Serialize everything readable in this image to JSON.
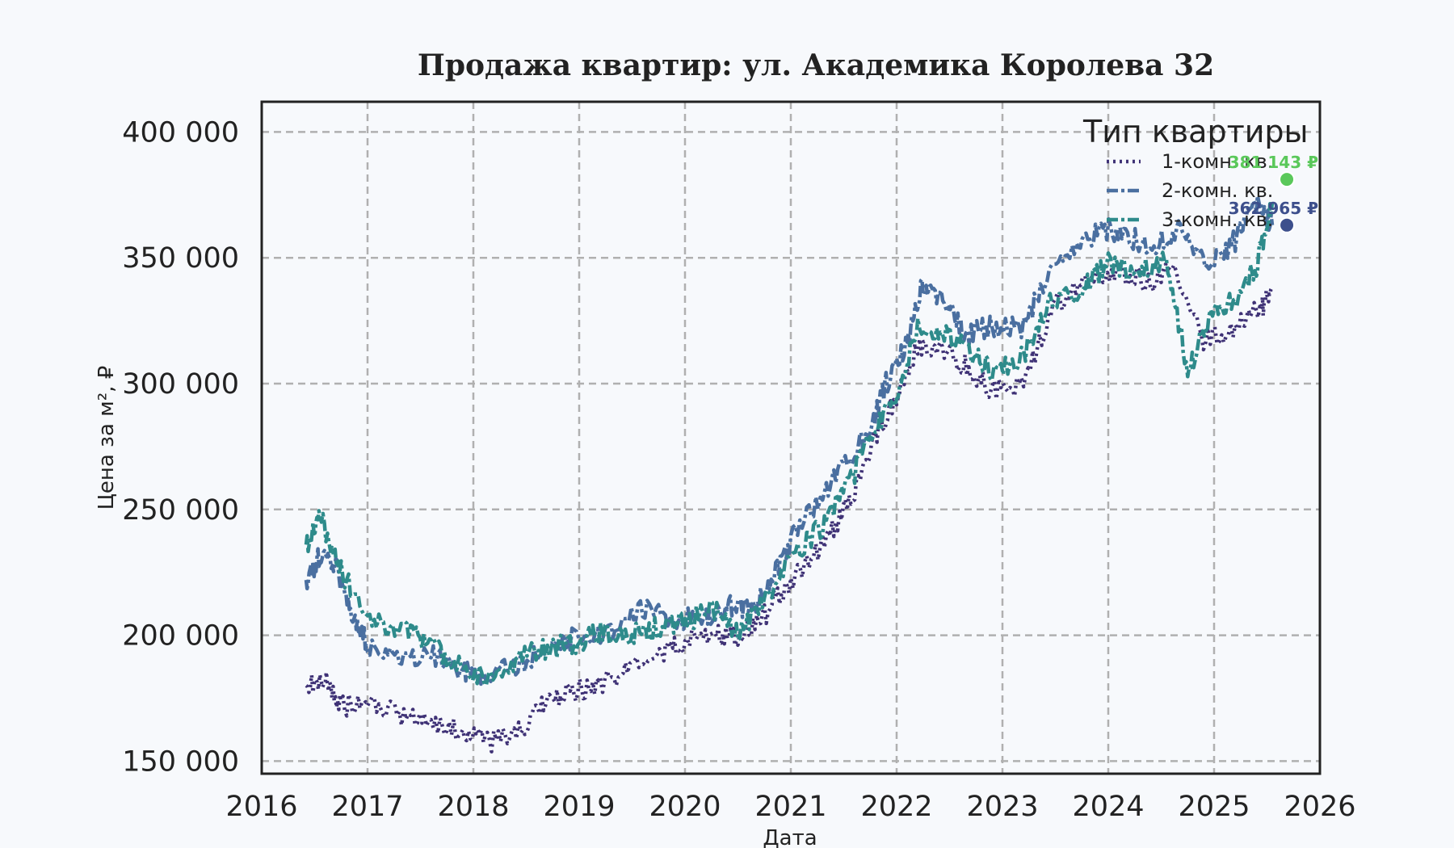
{
  "chart_data": {
    "type": "line",
    "title": "Продажа квартир: ул. Академика Королева 32",
    "xlabel": "Дата",
    "ylabel": "Цена за м², ₽",
    "xlim": [
      2016,
      2026
    ],
    "ylim": [
      145000,
      412000
    ],
    "x_ticks": [
      "2016",
      "2017",
      "2018",
      "2019",
      "2020",
      "2021",
      "2022",
      "2023",
      "2024",
      "2025",
      "2026"
    ],
    "y_ticks": [
      "150 000",
      "200 000",
      "250 000",
      "300 000",
      "350 000",
      "400 000"
    ],
    "y_tick_values": [
      150000,
      200000,
      250000,
      300000,
      350000,
      400000
    ],
    "grid": true,
    "legend": {
      "title": "Тип квартиры",
      "position": "top-right"
    },
    "series": [
      {
        "name": "1-комн. кв.",
        "color": "#3f3276",
        "dash": "dotted",
        "points": [
          [
            2016.42,
            180000
          ],
          [
            2016.6,
            182000
          ],
          [
            2016.75,
            172000
          ],
          [
            2017.0,
            173000
          ],
          [
            2017.3,
            168000
          ],
          [
            2017.6,
            166000
          ],
          [
            2017.9,
            161000
          ],
          [
            2018.15,
            157000
          ],
          [
            2018.45,
            163000
          ],
          [
            2018.7,
            173000
          ],
          [
            2018.95,
            178000
          ],
          [
            2019.2,
            181000
          ],
          [
            2019.5,
            186000
          ],
          [
            2019.8,
            193000
          ],
          [
            2020.0,
            197000
          ],
          [
            2020.3,
            202000
          ],
          [
            2020.5,
            198000
          ],
          [
            2020.75,
            208000
          ],
          [
            2021.0,
            222000
          ],
          [
            2021.3,
            236000
          ],
          [
            2021.55,
            252000
          ],
          [
            2021.8,
            278000
          ],
          [
            2022.0,
            295000
          ],
          [
            2022.2,
            315000
          ],
          [
            2022.45,
            312000
          ],
          [
            2022.7,
            306000
          ],
          [
            2022.9,
            297000
          ],
          [
            2023.2,
            300000
          ],
          [
            2023.5,
            331000
          ],
          [
            2023.8,
            343000
          ],
          [
            2024.1,
            345000
          ],
          [
            2024.4,
            340000
          ],
          [
            2024.6,
            348000
          ],
          [
            2024.9,
            316000
          ],
          [
            2025.2,
            322000
          ],
          [
            2025.45,
            330000
          ],
          [
            2025.55,
            337000
          ]
        ]
      },
      {
        "name": "2-комн. кв.",
        "color": "#4a6fa0",
        "dash": "dashdot",
        "points": [
          [
            2016.42,
            222000
          ],
          [
            2016.55,
            232000
          ],
          [
            2016.7,
            228000
          ],
          [
            2016.85,
            206000
          ],
          [
            2017.0,
            197000
          ],
          [
            2017.3,
            189000
          ],
          [
            2017.6,
            193000
          ],
          [
            2017.9,
            186000
          ],
          [
            2018.1,
            182000
          ],
          [
            2018.4,
            188000
          ],
          [
            2018.7,
            194000
          ],
          [
            2018.95,
            199000
          ],
          [
            2019.3,
            202000
          ],
          [
            2019.6,
            210000
          ],
          [
            2019.9,
            206000
          ],
          [
            2020.2,
            208000
          ],
          [
            2020.4,
            212000
          ],
          [
            2020.6,
            210000
          ],
          [
            2020.8,
            220000
          ],
          [
            2021.0,
            238000
          ],
          [
            2021.3,
            257000
          ],
          [
            2021.55,
            270000
          ],
          [
            2021.75,
            281000
          ],
          [
            2021.9,
            300000
          ],
          [
            2022.1,
            316000
          ],
          [
            2022.25,
            340000
          ],
          [
            2022.45,
            332000
          ],
          [
            2022.65,
            319000
          ],
          [
            2022.9,
            323000
          ],
          [
            2023.2,
            322000
          ],
          [
            2023.4,
            342000
          ],
          [
            2023.7,
            354000
          ],
          [
            2023.95,
            362000
          ],
          [
            2024.2,
            358000
          ],
          [
            2024.45,
            355000
          ],
          [
            2024.7,
            362000
          ],
          [
            2024.95,
            347000
          ],
          [
            2025.2,
            357000
          ],
          [
            2025.4,
            372000
          ],
          [
            2025.55,
            363000
          ]
        ]
      },
      {
        "name": "3-комн. кв.",
        "color": "#2e8b8b",
        "dash": "dashdot",
        "points": [
          [
            2016.42,
            236000
          ],
          [
            2016.55,
            247000
          ],
          [
            2016.75,
            226000
          ],
          [
            2017.0,
            207000
          ],
          [
            2017.3,
            202000
          ],
          [
            2017.55,
            199000
          ],
          [
            2017.8,
            190000
          ],
          [
            2018.1,
            184000
          ],
          [
            2018.4,
            190000
          ],
          [
            2018.7,
            195000
          ],
          [
            2018.95,
            196000
          ],
          [
            2019.2,
            201000
          ],
          [
            2019.5,
            200000
          ],
          [
            2019.75,
            203000
          ],
          [
            2020.0,
            206000
          ],
          [
            2020.3,
            210000
          ],
          [
            2020.5,
            201000
          ],
          [
            2020.75,
            214000
          ],
          [
            2021.0,
            230000
          ],
          [
            2021.3,
            244000
          ],
          [
            2021.55,
            260000
          ],
          [
            2021.8,
            282000
          ],
          [
            2022.0,
            296000
          ],
          [
            2022.2,
            324000
          ],
          [
            2022.45,
            320000
          ],
          [
            2022.7,
            313000
          ],
          [
            2022.9,
            305000
          ],
          [
            2023.2,
            311000
          ],
          [
            2023.45,
            333000
          ],
          [
            2023.75,
            337000
          ],
          [
            2024.0,
            348000
          ],
          [
            2024.3,
            344000
          ],
          [
            2024.55,
            350000
          ],
          [
            2024.75,
            305000
          ],
          [
            2024.95,
            325000
          ],
          [
            2025.2,
            334000
          ],
          [
            2025.4,
            347000
          ],
          [
            2025.55,
            372000
          ]
        ]
      }
    ],
    "end_markers": [
      {
        "label": "381 143 ₽",
        "value": 381143,
        "color": "#5ac85a"
      },
      {
        "label": "362 965 ₽",
        "value": 362965,
        "color": "#3d4f8c"
      }
    ]
  }
}
